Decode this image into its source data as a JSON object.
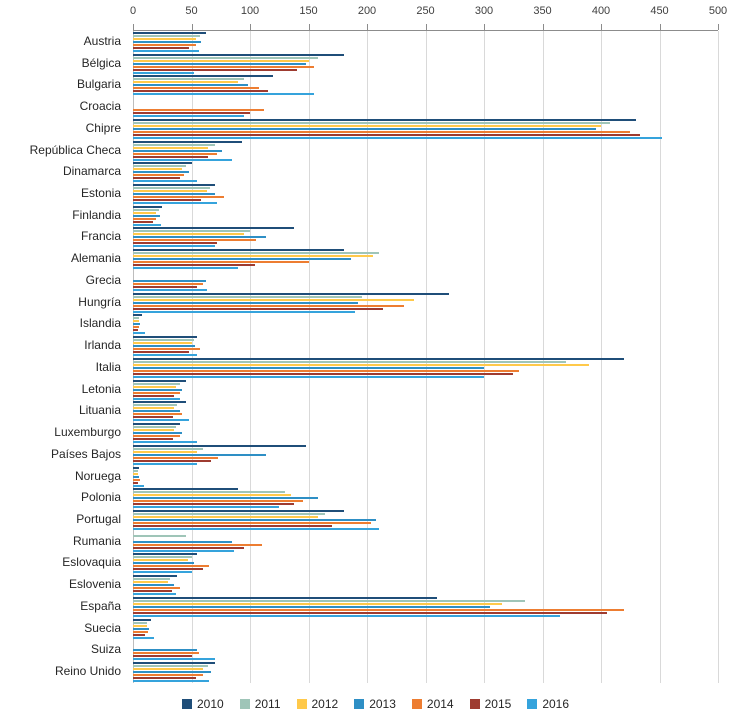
{
  "chart_data": {
    "type": "bar",
    "orientation": "horizontal",
    "title": "",
    "xlabel": "",
    "ylabel": "",
    "xlim": [
      0,
      500
    ],
    "xticks": [
      0,
      50,
      100,
      150,
      200,
      250,
      300,
      350,
      400,
      450,
      500
    ],
    "grid": true,
    "legend_position": "bottom",
    "categories": [
      "Austria",
      "Bélgica",
      "Bulgaria",
      "Croacia",
      "Chipre",
      "República Checa",
      "Dinamarca",
      "Estonia",
      "Finlandia",
      "Francia",
      "Alemania",
      "Grecia",
      "Hungría",
      "Islandia",
      "Irlanda",
      "Italia",
      "Letonia",
      "Lituania",
      "Luxemburgo",
      "Países Bajos",
      "Noruega",
      "Polonia",
      "Portugal",
      "Rumania",
      "Eslovaquia",
      "Eslovenia",
      "España",
      "Suecia",
      "Suiza",
      "Reino Unido"
    ],
    "series": [
      {
        "name": "2010",
        "color": "#1F4E79",
        "values": [
          62,
          180,
          120,
          0,
          430,
          93,
          50,
          70,
          25,
          138,
          180,
          0,
          270,
          8,
          55,
          420,
          45,
          45,
          40,
          148,
          5,
          90,
          180,
          0,
          55,
          38,
          260,
          15,
          0,
          70
        ]
      },
      {
        "name": "2011",
        "color": "#9FC5B8",
        "values": [
          57,
          158,
          95,
          0,
          408,
          70,
          45,
          66,
          22,
          100,
          210,
          0,
          196,
          5,
          52,
          370,
          40,
          38,
          37,
          60,
          4,
          130,
          164,
          45,
          50,
          32,
          335,
          12,
          0,
          64
        ]
      },
      {
        "name": "2012",
        "color": "#FFC94A",
        "values": [
          54,
          150,
          90,
          0,
          400,
          64,
          42,
          63,
          20,
          95,
          205,
          0,
          240,
          5,
          50,
          390,
          37,
          35,
          35,
          55,
          4,
          135,
          158,
          0,
          47,
          30,
          315,
          12,
          0,
          60
        ]
      },
      {
        "name": "2013",
        "color": "#2E8FC5",
        "values": [
          58,
          148,
          98,
          0,
          396,
          76,
          48,
          70,
          23,
          114,
          186,
          62,
          192,
          6,
          53,
          300,
          42,
          40,
          42,
          114,
          5,
          158,
          208,
          85,
          52,
          35,
          305,
          14,
          55,
          67
        ]
      },
      {
        "name": "2014",
        "color": "#ED7D31",
        "values": [
          54,
          155,
          108,
          112,
          425,
          72,
          44,
          78,
          20,
          105,
          150,
          60,
          232,
          5,
          57,
          330,
          40,
          42,
          40,
          73,
          6,
          145,
          203,
          110,
          65,
          40,
          420,
          13,
          56,
          60
        ]
      },
      {
        "name": "2015",
        "color": "#9E3B30",
        "values": [
          48,
          140,
          115,
          100,
          433,
          64,
          40,
          58,
          17,
          72,
          104,
          55,
          214,
          4,
          48,
          325,
          35,
          34,
          34,
          67,
          4,
          138,
          170,
          95,
          60,
          33,
          405,
          10,
          50,
          54
        ]
      },
      {
        "name": "2016",
        "color": "#35A3DC",
        "values": [
          56,
          52,
          155,
          95,
          452,
          85,
          55,
          72,
          24,
          70,
          90,
          63,
          190,
          10,
          55,
          300,
          40,
          48,
          55,
          55,
          9,
          125,
          210,
          86,
          50,
          37,
          365,
          18,
          70,
          65
        ]
      }
    ]
  }
}
